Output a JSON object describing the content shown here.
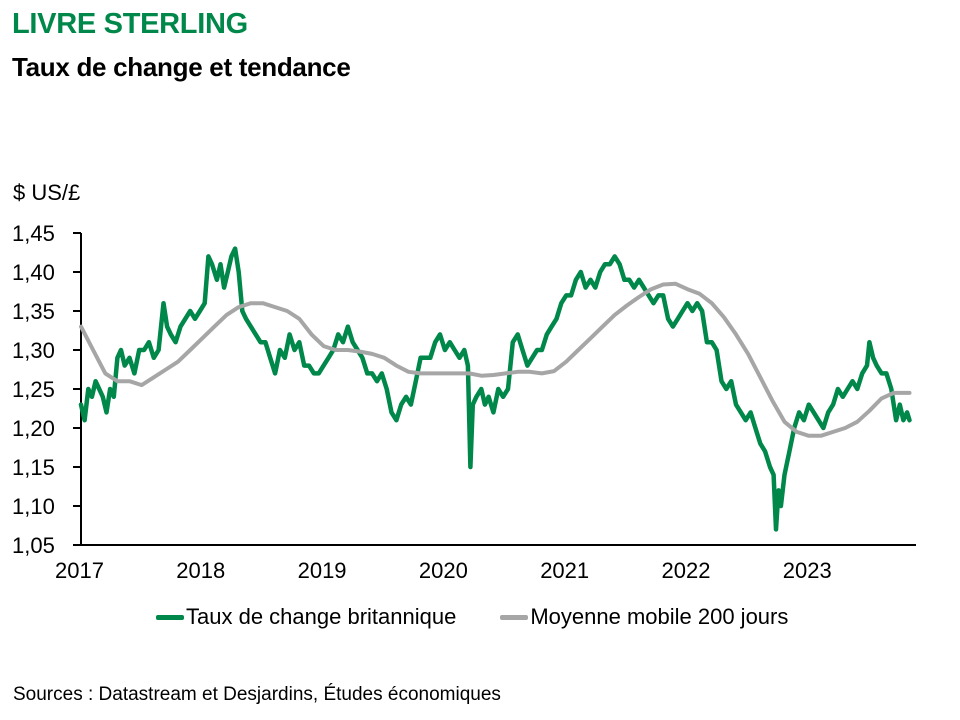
{
  "header": {
    "title": "LIVRE STERLING",
    "subtitle": "Taux de change et tendance"
  },
  "footer": {
    "source": "Sources : Datastream et Desjardins, Études économiques"
  },
  "colors": {
    "accent": "#00874a",
    "series_rate": "#00874a",
    "series_ma": "#a6a6a6",
    "axis": "#000000"
  },
  "chart_data": {
    "type": "line",
    "title": "LIVRE STERLING",
    "subtitle": "Taux de change et tendance",
    "xlabel": "",
    "ylabel": "$ US/£",
    "ylim": [
      1.05,
      1.45
    ],
    "xlim": [
      2017,
      2023.83
    ],
    "yticks": [
      1.05,
      1.1,
      1.15,
      1.2,
      1.25,
      1.3,
      1.35,
      1.4,
      1.45
    ],
    "ytick_labels": [
      "1,05",
      "1,10",
      "1,15",
      "1,20",
      "1,25",
      "1,30",
      "1,35",
      "1,40",
      "1,45"
    ],
    "xticks": [
      2017,
      2018,
      2019,
      2020,
      2021,
      2022,
      2023
    ],
    "xtick_labels": [
      "2017",
      "2018",
      "2019",
      "2020",
      "2021",
      "2022",
      "2023"
    ],
    "grid": false,
    "legend": "bottom",
    "series": [
      {
        "name": "Taux de change britannique",
        "color": "#00874a",
        "points": [
          [
            2017.0,
            1.23
          ],
          [
            2017.03,
            1.21
          ],
          [
            2017.06,
            1.25
          ],
          [
            2017.09,
            1.24
          ],
          [
            2017.12,
            1.26
          ],
          [
            2017.15,
            1.25
          ],
          [
            2017.18,
            1.24
          ],
          [
            2017.21,
            1.22
          ],
          [
            2017.24,
            1.25
          ],
          [
            2017.27,
            1.24
          ],
          [
            2017.3,
            1.29
          ],
          [
            2017.33,
            1.3
          ],
          [
            2017.36,
            1.28
          ],
          [
            2017.4,
            1.29
          ],
          [
            2017.44,
            1.27
          ],
          [
            2017.48,
            1.3
          ],
          [
            2017.52,
            1.3
          ],
          [
            2017.56,
            1.31
          ],
          [
            2017.6,
            1.29
          ],
          [
            2017.64,
            1.3
          ],
          [
            2017.68,
            1.36
          ],
          [
            2017.71,
            1.33
          ],
          [
            2017.74,
            1.32
          ],
          [
            2017.78,
            1.31
          ],
          [
            2017.82,
            1.33
          ],
          [
            2017.86,
            1.34
          ],
          [
            2017.9,
            1.35
          ],
          [
            2017.94,
            1.34
          ],
          [
            2017.98,
            1.35
          ],
          [
            2018.02,
            1.36
          ],
          [
            2018.05,
            1.42
          ],
          [
            2018.08,
            1.41
          ],
          [
            2018.12,
            1.39
          ],
          [
            2018.15,
            1.41
          ],
          [
            2018.18,
            1.38
          ],
          [
            2018.21,
            1.4
          ],
          [
            2018.24,
            1.42
          ],
          [
            2018.27,
            1.43
          ],
          [
            2018.3,
            1.4
          ],
          [
            2018.33,
            1.35
          ],
          [
            2018.36,
            1.34
          ],
          [
            2018.4,
            1.33
          ],
          [
            2018.44,
            1.32
          ],
          [
            2018.48,
            1.31
          ],
          [
            2018.52,
            1.31
          ],
          [
            2018.56,
            1.29
          ],
          [
            2018.6,
            1.27
          ],
          [
            2018.64,
            1.3
          ],
          [
            2018.68,
            1.29
          ],
          [
            2018.72,
            1.32
          ],
          [
            2018.76,
            1.3
          ],
          [
            2018.8,
            1.31
          ],
          [
            2018.84,
            1.28
          ],
          [
            2018.88,
            1.28
          ],
          [
            2018.92,
            1.27
          ],
          [
            2018.96,
            1.27
          ],
          [
            2019.0,
            1.28
          ],
          [
            2019.04,
            1.29
          ],
          [
            2019.08,
            1.3
          ],
          [
            2019.12,
            1.32
          ],
          [
            2019.16,
            1.31
          ],
          [
            2019.2,
            1.33
          ],
          [
            2019.24,
            1.31
          ],
          [
            2019.28,
            1.3
          ],
          [
            2019.32,
            1.29
          ],
          [
            2019.36,
            1.27
          ],
          [
            2019.4,
            1.27
          ],
          [
            2019.44,
            1.26
          ],
          [
            2019.48,
            1.27
          ],
          [
            2019.52,
            1.25
          ],
          [
            2019.56,
            1.22
          ],
          [
            2019.6,
            1.21
          ],
          [
            2019.64,
            1.23
          ],
          [
            2019.68,
            1.24
          ],
          [
            2019.72,
            1.23
          ],
          [
            2019.76,
            1.26
          ],
          [
            2019.8,
            1.29
          ],
          [
            2019.84,
            1.29
          ],
          [
            2019.88,
            1.29
          ],
          [
            2019.92,
            1.31
          ],
          [
            2019.96,
            1.32
          ],
          [
            2020.0,
            1.3
          ],
          [
            2020.04,
            1.31
          ],
          [
            2020.08,
            1.3
          ],
          [
            2020.12,
            1.29
          ],
          [
            2020.16,
            1.3
          ],
          [
            2020.19,
            1.28
          ],
          [
            2020.21,
            1.15
          ],
          [
            2020.23,
            1.23
          ],
          [
            2020.26,
            1.24
          ],
          [
            2020.3,
            1.25
          ],
          [
            2020.33,
            1.23
          ],
          [
            2020.36,
            1.24
          ],
          [
            2020.4,
            1.22
          ],
          [
            2020.44,
            1.25
          ],
          [
            2020.48,
            1.24
          ],
          [
            2020.52,
            1.25
          ],
          [
            2020.56,
            1.31
          ],
          [
            2020.6,
            1.32
          ],
          [
            2020.64,
            1.3
          ],
          [
            2020.68,
            1.28
          ],
          [
            2020.72,
            1.29
          ],
          [
            2020.76,
            1.3
          ],
          [
            2020.8,
            1.3
          ],
          [
            2020.84,
            1.32
          ],
          [
            2020.88,
            1.33
          ],
          [
            2020.92,
            1.34
          ],
          [
            2020.96,
            1.36
          ],
          [
            2021.0,
            1.37
          ],
          [
            2021.04,
            1.37
          ],
          [
            2021.08,
            1.39
          ],
          [
            2021.12,
            1.4
          ],
          [
            2021.16,
            1.38
          ],
          [
            2021.2,
            1.39
          ],
          [
            2021.24,
            1.38
          ],
          [
            2021.28,
            1.4
          ],
          [
            2021.32,
            1.41
          ],
          [
            2021.36,
            1.41
          ],
          [
            2021.4,
            1.42
          ],
          [
            2021.44,
            1.41
          ],
          [
            2021.48,
            1.39
          ],
          [
            2021.52,
            1.39
          ],
          [
            2021.56,
            1.38
          ],
          [
            2021.6,
            1.39
          ],
          [
            2021.64,
            1.38
          ],
          [
            2021.68,
            1.37
          ],
          [
            2021.72,
            1.36
          ],
          [
            2021.76,
            1.37
          ],
          [
            2021.8,
            1.37
          ],
          [
            2021.84,
            1.34
          ],
          [
            2021.88,
            1.33
          ],
          [
            2021.92,
            1.34
          ],
          [
            2021.96,
            1.35
          ],
          [
            2022.0,
            1.36
          ],
          [
            2022.04,
            1.35
          ],
          [
            2022.08,
            1.36
          ],
          [
            2022.12,
            1.35
          ],
          [
            2022.16,
            1.31
          ],
          [
            2022.2,
            1.31
          ],
          [
            2022.24,
            1.3
          ],
          [
            2022.28,
            1.26
          ],
          [
            2022.32,
            1.25
          ],
          [
            2022.36,
            1.26
          ],
          [
            2022.4,
            1.23
          ],
          [
            2022.44,
            1.22
          ],
          [
            2022.48,
            1.21
          ],
          [
            2022.52,
            1.22
          ],
          [
            2022.56,
            1.2
          ],
          [
            2022.6,
            1.18
          ],
          [
            2022.64,
            1.17
          ],
          [
            2022.68,
            1.15
          ],
          [
            2022.71,
            1.14
          ],
          [
            2022.73,
            1.07
          ],
          [
            2022.75,
            1.12
          ],
          [
            2022.77,
            1.1
          ],
          [
            2022.8,
            1.14
          ],
          [
            2022.84,
            1.17
          ],
          [
            2022.88,
            1.2
          ],
          [
            2022.92,
            1.22
          ],
          [
            2022.96,
            1.21
          ],
          [
            2023.0,
            1.23
          ],
          [
            2023.04,
            1.22
          ],
          [
            2023.08,
            1.21
          ],
          [
            2023.12,
            1.2
          ],
          [
            2023.16,
            1.22
          ],
          [
            2023.2,
            1.23
          ],
          [
            2023.24,
            1.25
          ],
          [
            2023.28,
            1.24
          ],
          [
            2023.32,
            1.25
          ],
          [
            2023.36,
            1.26
          ],
          [
            2023.4,
            1.25
          ],
          [
            2023.44,
            1.27
          ],
          [
            2023.48,
            1.28
          ],
          [
            2023.5,
            1.31
          ],
          [
            2023.53,
            1.29
          ],
          [
            2023.56,
            1.28
          ],
          [
            2023.6,
            1.27
          ],
          [
            2023.64,
            1.27
          ],
          [
            2023.68,
            1.25
          ],
          [
            2023.72,
            1.21
          ],
          [
            2023.75,
            1.23
          ],
          [
            2023.78,
            1.21
          ],
          [
            2023.81,
            1.22
          ],
          [
            2023.83,
            1.21
          ]
        ]
      },
      {
        "name": "Moyenne mobile 200 jours",
        "color": "#a6a6a6",
        "points": [
          [
            2017.0,
            1.33
          ],
          [
            2017.1,
            1.3
          ],
          [
            2017.2,
            1.27
          ],
          [
            2017.3,
            1.26
          ],
          [
            2017.4,
            1.26
          ],
          [
            2017.5,
            1.255
          ],
          [
            2017.6,
            1.265
          ],
          [
            2017.7,
            1.275
          ],
          [
            2017.8,
            1.285
          ],
          [
            2017.9,
            1.3
          ],
          [
            2018.0,
            1.315
          ],
          [
            2018.1,
            1.33
          ],
          [
            2018.2,
            1.345
          ],
          [
            2018.3,
            1.355
          ],
          [
            2018.4,
            1.36
          ],
          [
            2018.5,
            1.36
          ],
          [
            2018.6,
            1.355
          ],
          [
            2018.7,
            1.35
          ],
          [
            2018.8,
            1.34
          ],
          [
            2018.9,
            1.32
          ],
          [
            2019.0,
            1.305
          ],
          [
            2019.1,
            1.3
          ],
          [
            2019.2,
            1.3
          ],
          [
            2019.3,
            1.298
          ],
          [
            2019.4,
            1.295
          ],
          [
            2019.5,
            1.29
          ],
          [
            2019.6,
            1.28
          ],
          [
            2019.7,
            1.272
          ],
          [
            2019.8,
            1.27
          ],
          [
            2019.9,
            1.27
          ],
          [
            2020.0,
            1.27
          ],
          [
            2020.1,
            1.27
          ],
          [
            2020.2,
            1.27
          ],
          [
            2020.3,
            1.267
          ],
          [
            2020.4,
            1.268
          ],
          [
            2020.5,
            1.27
          ],
          [
            2020.6,
            1.272
          ],
          [
            2020.7,
            1.272
          ],
          [
            2020.8,
            1.27
          ],
          [
            2020.9,
            1.273
          ],
          [
            2021.0,
            1.285
          ],
          [
            2021.1,
            1.3
          ],
          [
            2021.2,
            1.315
          ],
          [
            2021.3,
            1.33
          ],
          [
            2021.4,
            1.345
          ],
          [
            2021.5,
            1.357
          ],
          [
            2021.6,
            1.368
          ],
          [
            2021.7,
            1.378
          ],
          [
            2021.8,
            1.384
          ],
          [
            2021.9,
            1.385
          ],
          [
            2022.0,
            1.378
          ],
          [
            2022.1,
            1.372
          ],
          [
            2022.2,
            1.36
          ],
          [
            2022.3,
            1.342
          ],
          [
            2022.4,
            1.32
          ],
          [
            2022.5,
            1.295
          ],
          [
            2022.6,
            1.265
          ],
          [
            2022.7,
            1.235
          ],
          [
            2022.8,
            1.208
          ],
          [
            2022.9,
            1.195
          ],
          [
            2023.0,
            1.19
          ],
          [
            2023.1,
            1.19
          ],
          [
            2023.2,
            1.195
          ],
          [
            2023.3,
            1.2
          ],
          [
            2023.4,
            1.208
          ],
          [
            2023.5,
            1.222
          ],
          [
            2023.6,
            1.238
          ],
          [
            2023.7,
            1.245
          ],
          [
            2023.83,
            1.245
          ]
        ]
      }
    ]
  },
  "legend": {
    "items": [
      {
        "label": "Taux de change britannique",
        "color": "#00874a"
      },
      {
        "label": "Moyenne mobile 200 jours",
        "color": "#a6a6a6"
      }
    ]
  }
}
